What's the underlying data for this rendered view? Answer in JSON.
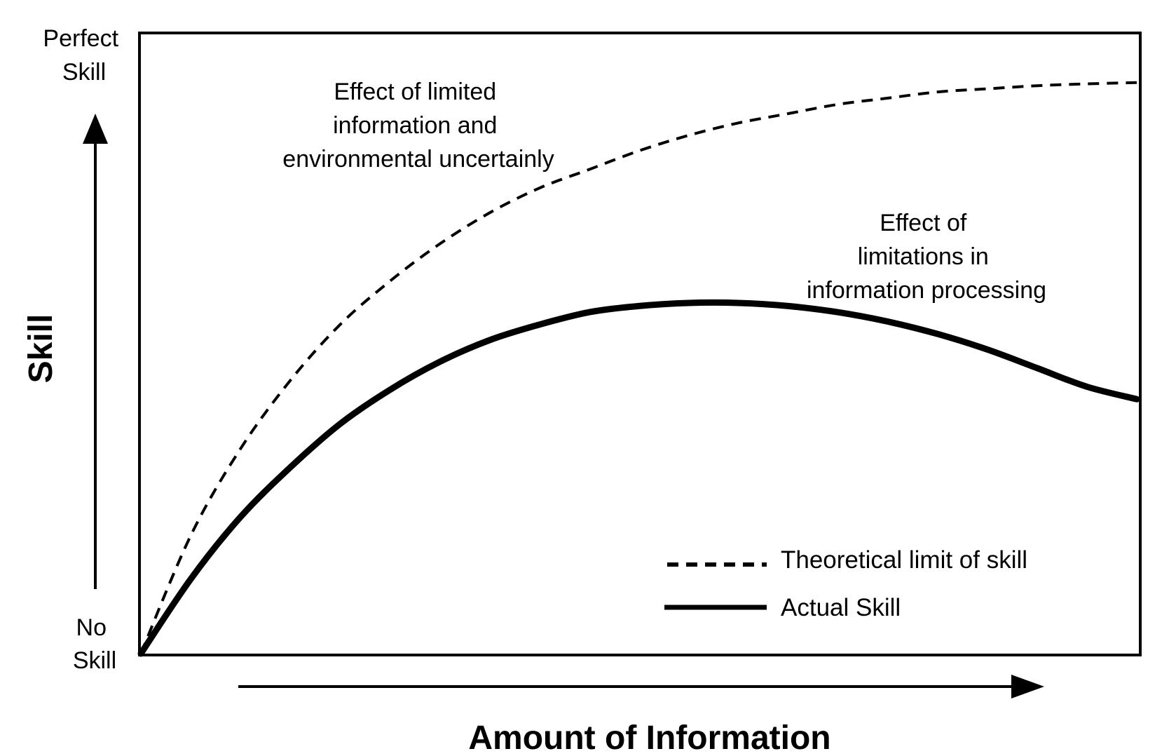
{
  "chart_data": {
    "type": "line",
    "xlabel": "Amount of Information",
    "ylabel": "Skill",
    "y_tick_labels": {
      "top": [
        "Perfect",
        "Skill"
      ],
      "bottom": [
        "No",
        "Skill"
      ]
    },
    "xlim": [
      0,
      1
    ],
    "ylim": [
      0,
      1
    ],
    "grid": false,
    "legend_position": "bottom-right",
    "series": [
      {
        "name": "Theoretical limit of skill",
        "style": "dashed",
        "color": "#000000",
        "x": [
          0.0,
          0.05,
          0.1,
          0.15,
          0.2,
          0.25,
          0.3,
          0.35,
          0.4,
          0.45,
          0.5,
          0.55,
          0.6,
          0.65,
          0.7,
          0.75,
          0.8,
          0.85,
          0.9,
          0.95,
          1.0
        ],
        "y": [
          0.0,
          0.19,
          0.33,
          0.44,
          0.53,
          0.6,
          0.66,
          0.71,
          0.75,
          0.78,
          0.81,
          0.835,
          0.855,
          0.87,
          0.885,
          0.895,
          0.905,
          0.91,
          0.915,
          0.918,
          0.92
        ]
      },
      {
        "name": "Actual Skill",
        "style": "solid",
        "color": "#000000",
        "x": [
          0.0,
          0.05,
          0.1,
          0.15,
          0.2,
          0.25,
          0.3,
          0.35,
          0.4,
          0.45,
          0.5,
          0.55,
          0.6,
          0.65,
          0.7,
          0.75,
          0.8,
          0.85,
          0.9,
          0.95,
          1.0
        ],
        "y": [
          0.0,
          0.12,
          0.22,
          0.3,
          0.37,
          0.425,
          0.47,
          0.505,
          0.53,
          0.55,
          0.56,
          0.565,
          0.565,
          0.56,
          0.55,
          0.535,
          0.515,
          0.49,
          0.46,
          0.43,
          0.41
        ]
      }
    ],
    "annotations": [
      {
        "id": "uncertainty",
        "lines": [
          "Effect of limited",
          "information and",
          "environmental uncertainly"
        ]
      },
      {
        "id": "processing",
        "lines": [
          "Effect of",
          "limitations in",
          "information processing"
        ]
      }
    ]
  }
}
